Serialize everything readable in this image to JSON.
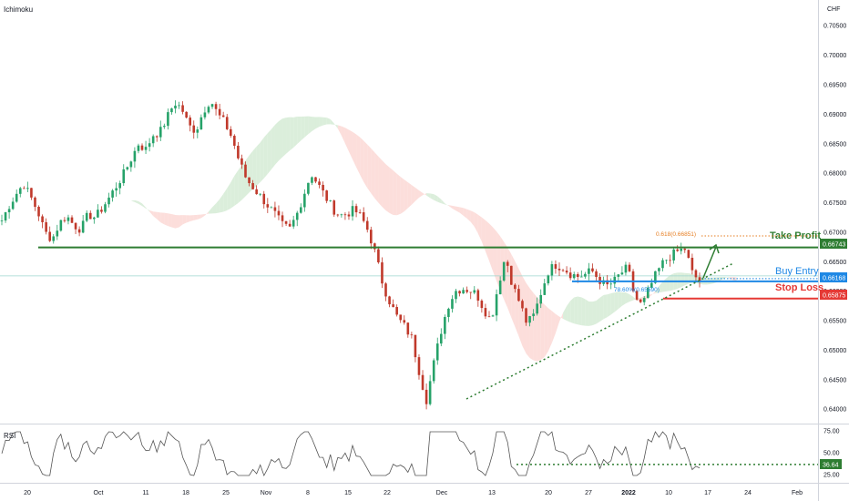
{
  "header": {
    "indicator_name": "Ichimoku",
    "currency": "CHF"
  },
  "annotations": {
    "take_profit_label": "Take Profit",
    "buy_entry_label": "Buy Entry",
    "stop_loss_label": "Stop Loss",
    "fib_tp_label": "0.618(0.66851)",
    "fib_entry_label": "78.60%(0.65590)"
  },
  "rsi_panel": {
    "title": "RSI",
    "current_value": "36.64",
    "ticks": [
      "75.00",
      "50.00",
      "25.00"
    ],
    "reference_level": 36.64
  },
  "colors": {
    "take_profit": "#2e7d32",
    "buy_entry": "#1e88e5",
    "stop_loss": "#e53935",
    "bull": "#26a269",
    "bear": "#c0392b",
    "cloud_bull": "#cfe8cf",
    "cloud_bear": "#fbd3cf",
    "fib": "#e67e22",
    "rsi_line": "#555555"
  },
  "chart_data": {
    "type": "candlestick",
    "title": "",
    "symbol_currency": "CHF",
    "x_ticks": [
      "20",
      "Oct",
      "11",
      "18",
      "25",
      "Nov",
      "8",
      "15",
      "22",
      "Dec",
      "13",
      "20",
      "27",
      "2022",
      "10",
      "17",
      "24",
      "Feb"
    ],
    "y_ticks": [
      "0.70500",
      "0.70000",
      "0.69500",
      "0.69000",
      "0.68500",
      "0.68000",
      "0.67500",
      "0.67000",
      "0.66500",
      "0.66000",
      "0.65500",
      "0.65000",
      "0.64500",
      "0.64000"
    ],
    "ylim": [
      0.6375,
      0.7085
    ],
    "levels": {
      "take_profit": {
        "label": "Take Profit",
        "value": "0.66743"
      },
      "buy_entry": {
        "label": "Buy Entry",
        "value": "0.66168"
      },
      "stop_loss": {
        "label": "Stop Loss",
        "value": "0.65875"
      },
      "current_price_line": 0.6626
    },
    "fibonacci": [
      {
        "label": "0.618(0.66851)",
        "value": 0.66851
      },
      {
        "label": "78.60%(0.65590)",
        "value": 0.6559
      }
    ],
    "price_path": [
      0.672,
      0.6745,
      0.6765,
      0.6782,
      0.676,
      0.6735,
      0.67,
      0.6688,
      0.6715,
      0.6728,
      0.6712,
      0.6705,
      0.673,
      0.6725,
      0.6742,
      0.676,
      0.678,
      0.68,
      0.6825,
      0.685,
      0.684,
      0.6865,
      0.687,
      0.6895,
      0.692,
      0.691,
      0.688,
      0.6872,
      0.6905,
      0.6925,
      0.69,
      0.6885,
      0.686,
      0.682,
      0.679,
      0.6775,
      0.676,
      0.6745,
      0.673,
      0.6712,
      0.6705,
      0.673,
      0.6765,
      0.68,
      0.678,
      0.676,
      0.674,
      0.6728,
      0.6732,
      0.6738,
      0.6725,
      0.67,
      0.666,
      0.661,
      0.658,
      0.6555,
      0.654,
      0.652,
      0.6465,
      0.6415,
      0.6475,
      0.653,
      0.6575,
      0.66,
      0.6605,
      0.6602,
      0.6595,
      0.657,
      0.655,
      0.661,
      0.666,
      0.661,
      0.658,
      0.6545,
      0.656,
      0.66,
      0.6635,
      0.6645,
      0.664,
      0.663,
      0.6625,
      0.6628,
      0.6635,
      0.662,
      0.6608,
      0.6615,
      0.663,
      0.664,
      0.659,
      0.6575,
      0.6605,
      0.663,
      0.665,
      0.666,
      0.6668,
      0.6672,
      0.663,
      0.6617
    ]
  }
}
